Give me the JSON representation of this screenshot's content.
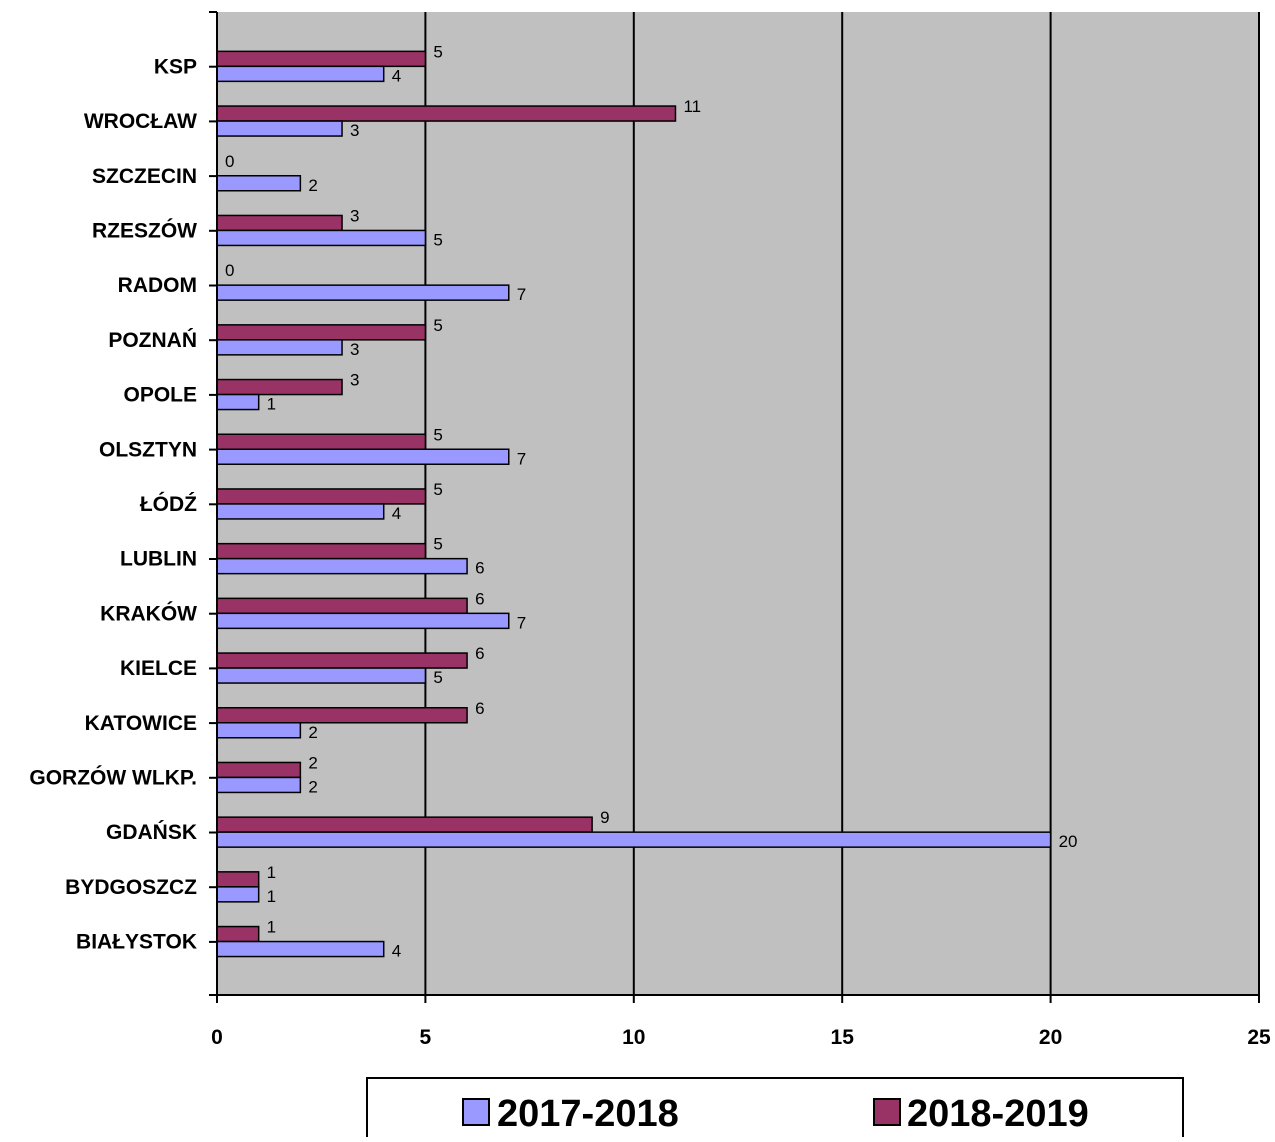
{
  "chart_data": {
    "type": "bar",
    "orientation": "horizontal",
    "categories": [
      "KSP",
      "WROCŁAW",
      "SZCZECIN",
      "RZESZÓW",
      "RADOM",
      "POZNAŃ",
      "OPOLE",
      "OLSZTYN",
      "ŁÓDŹ",
      "LUBLIN",
      "KRAKÓW",
      "KIELCE",
      "KATOWICE",
      "GORZÓW WLKP.",
      "GDAŃSK",
      "BYDGOSZCZ",
      "BIAŁYSTOK"
    ],
    "series": [
      {
        "name": "2017-2018",
        "color": "#9999ff",
        "values": [
          4,
          3,
          2,
          5,
          7,
          3,
          1,
          7,
          4,
          6,
          7,
          5,
          2,
          2,
          20,
          1,
          4
        ]
      },
      {
        "name": "2018-2019",
        "color": "#993366",
        "values": [
          5,
          11,
          0,
          3,
          0,
          5,
          3,
          5,
          5,
          5,
          6,
          6,
          6,
          2,
          9,
          1,
          1
        ]
      }
    ],
    "xlim": [
      0,
      25
    ],
    "x_ticks": [
      0,
      5,
      10,
      15,
      20,
      25
    ],
    "grid": "vertical major",
    "plot_background": "#c0c0c0",
    "legend_position": "bottom",
    "data_labels": true
  }
}
